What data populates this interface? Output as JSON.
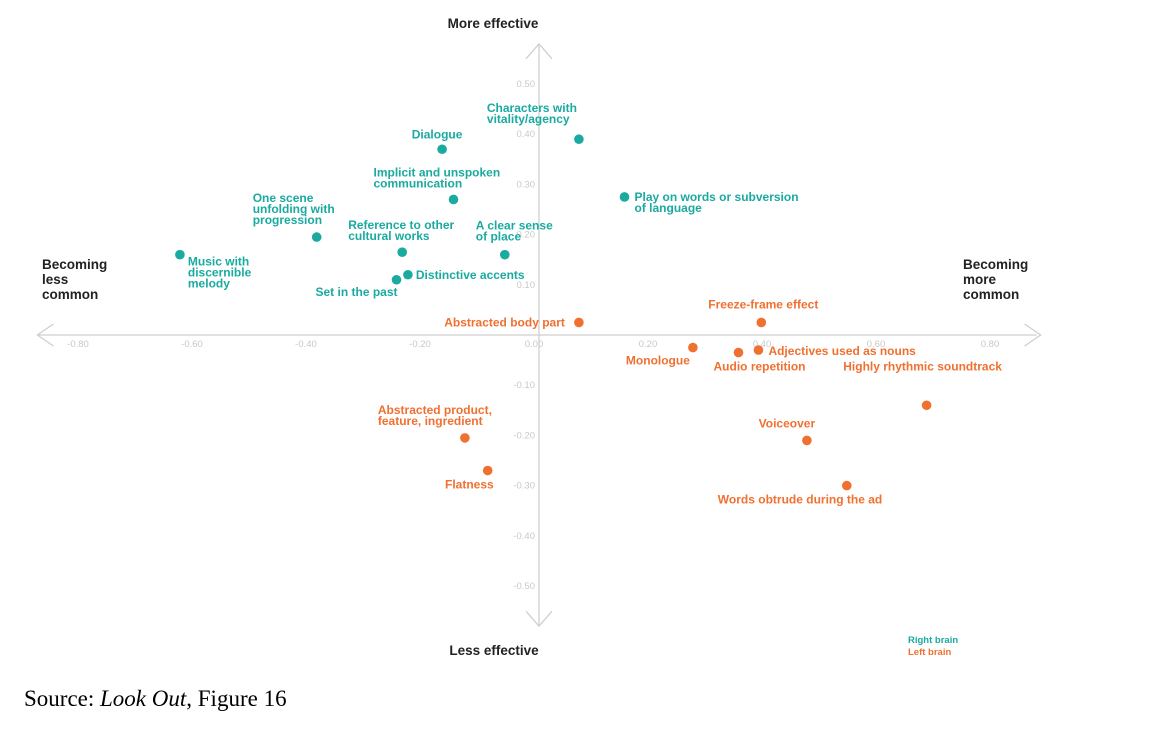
{
  "chart_data": {
    "type": "scatter",
    "axis_titles": {
      "top": "More effective",
      "bottom": "Less effective",
      "left": [
        "Becoming",
        "less",
        "common"
      ],
      "right": [
        "Becoming",
        "more",
        "common"
      ]
    },
    "x_ticks": [
      "-0.80",
      "-0.60",
      "-0.40",
      "-0.20",
      "0.00",
      "0.20",
      "0.40",
      "0.60",
      "0.80"
    ],
    "y_ticks": [
      "0.50",
      "0.40",
      "0.30",
      "0.20",
      "0.10",
      "-0.10",
      "-0.20",
      "-0.30",
      "-0.40",
      "-0.50"
    ],
    "xlim": [
      -0.88,
      0.88
    ],
    "ylim": [
      -0.58,
      0.58
    ],
    "grid": false,
    "legend_position": "bottom-right",
    "series": [
      {
        "name": "Right brain",
        "color": "#1aaaa0",
        "points": [
          {
            "x": 0.07,
            "y": 0.39,
            "label": [
              "Characters with",
              "vitality/agency"
            ]
          },
          {
            "x": -0.17,
            "y": 0.37,
            "label": [
              "Dialogue"
            ]
          },
          {
            "x": -0.15,
            "y": 0.27,
            "label": [
              "Implicit and unspoken",
              "communication"
            ]
          },
          {
            "x": 0.15,
            "y": 0.275,
            "label": [
              "Play on words or subversion",
              "of language"
            ]
          },
          {
            "x": -0.39,
            "y": 0.195,
            "label": [
              "One scene",
              "unfolding with",
              "progression"
            ]
          },
          {
            "x": -0.24,
            "y": 0.165,
            "label": [
              "Reference to other",
              "cultural works"
            ]
          },
          {
            "x": -0.06,
            "y": 0.16,
            "label": [
              "A clear sense",
              "of place"
            ]
          },
          {
            "x": -0.63,
            "y": 0.16,
            "label": [
              "Music with",
              "discernible",
              "melody"
            ]
          },
          {
            "x": -0.23,
            "y": 0.12,
            "label": [
              "Distinctive accents"
            ]
          },
          {
            "x": -0.25,
            "y": 0.11,
            "label": [
              "Set in the past"
            ]
          }
        ]
      },
      {
        "name": "Left brain",
        "color": "#f07030",
        "points": [
          {
            "x": 0.07,
            "y": 0.025,
            "label": [
              "Abstracted body part"
            ]
          },
          {
            "x": 0.39,
            "y": 0.025,
            "label": [
              "Freeze-frame effect"
            ]
          },
          {
            "x": 0.27,
            "y": -0.025,
            "label": [
              "Monologue"
            ]
          },
          {
            "x": 0.35,
            "y": -0.035,
            "label": [
              "Audio repetition"
            ]
          },
          {
            "x": 0.385,
            "y": -0.03,
            "label": [
              "Adjectives used as nouns"
            ]
          },
          {
            "x": 0.68,
            "y": -0.14,
            "label": [
              "Highly rhythmic soundtrack"
            ]
          },
          {
            "x": 0.47,
            "y": -0.21,
            "label": [
              "Voiceover"
            ]
          },
          {
            "x": -0.13,
            "y": -0.205,
            "label": [
              "Abstracted product,",
              "feature, ingredient"
            ]
          },
          {
            "x": -0.09,
            "y": -0.27,
            "label": [
              "Flatness"
            ]
          },
          {
            "x": 0.54,
            "y": -0.3,
            "label": [
              "Words obtrude during the ad"
            ]
          }
        ]
      }
    ]
  },
  "source": {
    "prefix": "Source: ",
    "title": "Look Out",
    "suffix": ", Figure 16"
  }
}
